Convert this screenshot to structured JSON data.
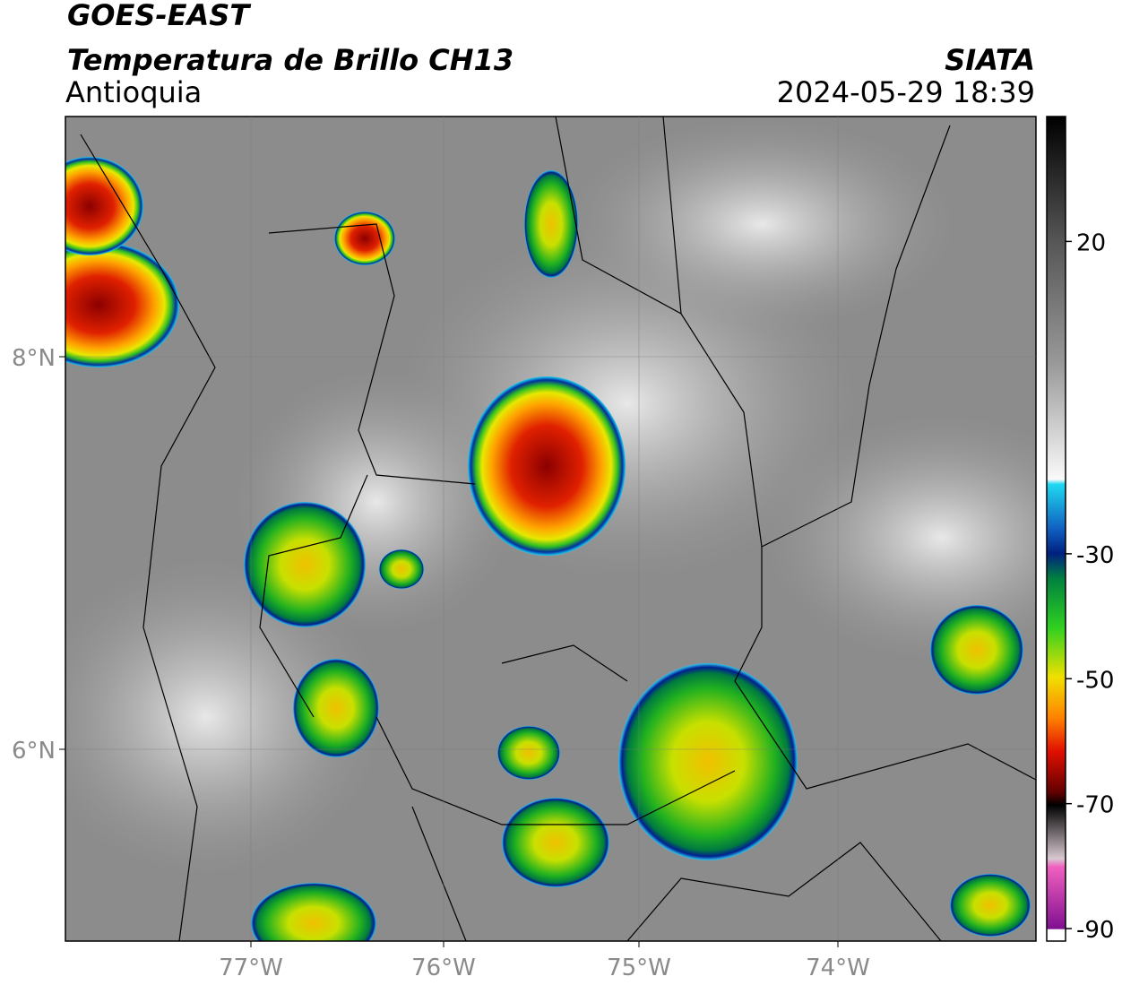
{
  "header": {
    "title": "GOES-EAST",
    "subtitle": "Temperatura de Brillo CH13",
    "region": "Antioquia",
    "source": "SIATA",
    "datetime": "2024-05-29 18:39"
  },
  "map": {
    "lat_labels": [
      "8°N",
      "6°N"
    ],
    "lon_labels": [
      "77°W",
      "76°W",
      "75°W",
      "74°W"
    ]
  },
  "colorbar": {
    "lim": [
      -92,
      40
    ],
    "ticks": [
      20,
      -30,
      -50,
      -70,
      -90
    ]
  }
}
